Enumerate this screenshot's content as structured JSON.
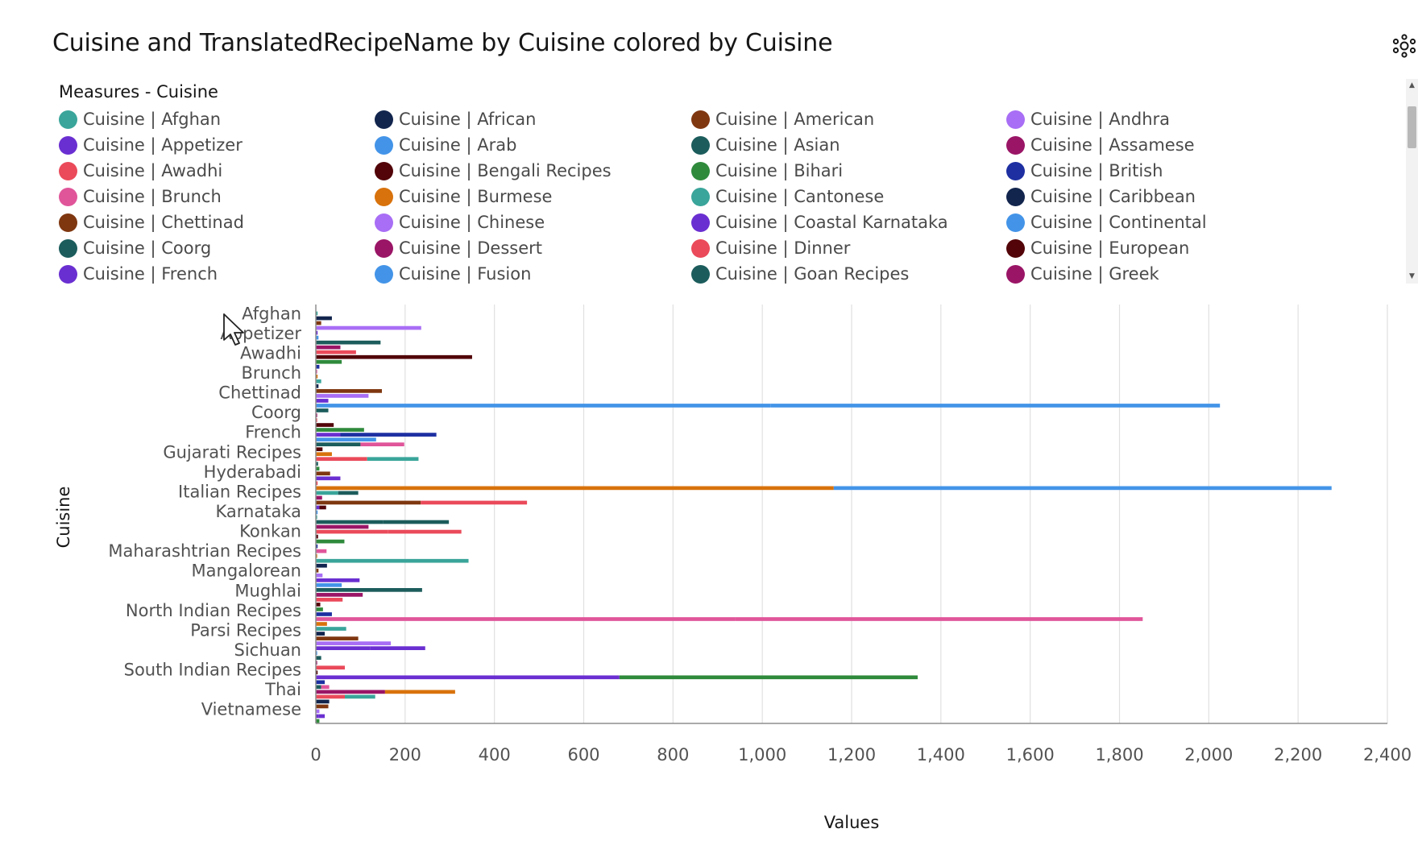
{
  "title": "Cuisine and TranslatedRecipeName by Cuisine colored by Cuisine",
  "legend": {
    "title": "Measures - Cuisine",
    "items": [
      {
        "label": "Cuisine | Afghan",
        "color": "#3aa59a"
      },
      {
        "label": "Cuisine | African",
        "color": "#12254d"
      },
      {
        "label": "Cuisine | American",
        "color": "#7f3710"
      },
      {
        "label": "Cuisine | Andhra",
        "color": "#a86ef5"
      },
      {
        "label": "Cuisine | Appetizer",
        "color": "#6a2fd1"
      },
      {
        "label": "Cuisine | Arab",
        "color": "#4394e8"
      },
      {
        "label": "Cuisine | Asian",
        "color": "#1c5c5c"
      },
      {
        "label": "Cuisine | Assamese",
        "color": "#9a1566"
      },
      {
        "label": "Cuisine | Awadhi",
        "color": "#ea4a5a"
      },
      {
        "label": "Cuisine | Bengali Recipes",
        "color": "#520408"
      },
      {
        "label": "Cuisine | Bihari",
        "color": "#2f8a3c"
      },
      {
        "label": "Cuisine | British",
        "color": "#1d2fa1"
      },
      {
        "label": "Cuisine | Brunch",
        "color": "#e0559a"
      },
      {
        "label": "Cuisine | Burmese",
        "color": "#d8720c"
      },
      {
        "label": "Cuisine | Cantonese",
        "color": "#3aa59a"
      },
      {
        "label": "Cuisine | Caribbean",
        "color": "#12254d"
      },
      {
        "label": "Cuisine | Chettinad",
        "color": "#7f3710"
      },
      {
        "label": "Cuisine | Chinese",
        "color": "#a86ef5"
      },
      {
        "label": "Cuisine | Coastal Karnataka",
        "color": "#6a2fd1"
      },
      {
        "label": "Cuisine | Continental",
        "color": "#4394e8"
      },
      {
        "label": "Cuisine | Coorg",
        "color": "#1c5c5c"
      },
      {
        "label": "Cuisine | Dessert",
        "color": "#9a1566"
      },
      {
        "label": "Cuisine | Dinner",
        "color": "#ea4a5a"
      },
      {
        "label": "Cuisine | European",
        "color": "#520408"
      },
      {
        "label": "Cuisine | French",
        "color": "#6a2fd1"
      },
      {
        "label": "Cuisine | Fusion",
        "color": "#4394e8"
      },
      {
        "label": "Cuisine | Goan Recipes",
        "color": "#1c5c5c"
      },
      {
        "label": "Cuisine | Greek",
        "color": "#9a1566"
      }
    ]
  },
  "chart_data": {
    "type": "bar",
    "orientation": "horizontal",
    "stacked": true,
    "xlabel": "Values",
    "ylabel": "Cuisine",
    "xlim": [
      0,
      2400
    ],
    "xticks": [
      0,
      200,
      400,
      600,
      800,
      1000,
      1200,
      1400,
      1600,
      1800,
      2000,
      2200,
      2400
    ],
    "xtick_labels": [
      "0",
      "200",
      "400",
      "600",
      "800",
      "1,000",
      "1,200",
      "1,400",
      "1,600",
      "1,800",
      "2,000",
      "2,200",
      "2,400"
    ],
    "grid": "vertical",
    "category_labels": [
      "Afghan",
      "Appetizer",
      "Awadhi",
      "Brunch",
      "Chettinad",
      "Coorg",
      "French",
      "Gujarati Recipes",
      "Hyderabadi",
      "Italian Recipes",
      "Karnataka",
      "Konkan",
      "Maharashtrian Recipes",
      "Mangalorean",
      "Mughlai",
      "North Indian Recipes",
      "Parsi Recipes",
      "Sichuan",
      "South Indian Recipes",
      "Thai",
      "Vietnamese"
    ],
    "bars": [
      {
        "segments": [
          {
            "value": 4,
            "color": "#3aa59a"
          }
        ]
      },
      {
        "segments": [
          {
            "value": 36,
            "color": "#12254d"
          }
        ]
      },
      {
        "segments": [
          {
            "value": 12,
            "color": "#7f3710"
          }
        ]
      },
      {
        "segments": [
          {
            "value": 120,
            "color": "#a86ef5"
          },
          {
            "value": 116,
            "color": "#a86ef5"
          }
        ]
      },
      {
        "segments": [
          {
            "value": 4,
            "color": "#6a2fd1"
          }
        ]
      },
      {
        "segments": [
          {
            "value": 6,
            "color": "#4394e8"
          }
        ]
      },
      {
        "segments": [
          {
            "value": 145,
            "color": "#1c5c5c"
          }
        ]
      },
      {
        "segments": [
          {
            "value": 55,
            "color": "#9a1566"
          }
        ]
      },
      {
        "segments": [
          {
            "value": 90,
            "color": "#ea4a5a"
          }
        ]
      },
      {
        "segments": [
          {
            "value": 350,
            "color": "#520408"
          }
        ]
      },
      {
        "segments": [
          {
            "value": 58,
            "color": "#2f8a3c"
          }
        ]
      },
      {
        "segments": [
          {
            "value": 8,
            "color": "#1d2fa1"
          }
        ]
      },
      {
        "segments": [
          {
            "value": 3,
            "color": "#e0559a"
          }
        ]
      },
      {
        "segments": [
          {
            "value": 4,
            "color": "#d8720c"
          }
        ]
      },
      {
        "segments": [
          {
            "value": 12,
            "color": "#3aa59a"
          }
        ]
      },
      {
        "segments": [
          {
            "value": 6,
            "color": "#12254d"
          }
        ]
      },
      {
        "segments": [
          {
            "value": 148,
            "color": "#7f3710"
          }
        ]
      },
      {
        "segments": [
          {
            "value": 118,
            "color": "#a86ef5"
          }
        ]
      },
      {
        "segments": [
          {
            "value": 28,
            "color": "#6a2fd1"
          }
        ]
      },
      {
        "segments": [
          {
            "value": 28,
            "color": "#4394e8"
          },
          {
            "value": 990,
            "color": "#4394e8"
          },
          {
            "value": 1007,
            "color": "#4394e8"
          }
        ]
      },
      {
        "segments": [
          {
            "value": 28,
            "color": "#1c5c5c"
          }
        ]
      },
      {
        "segments": [
          {
            "value": 3,
            "color": "#9a1566"
          }
        ]
      },
      {
        "segments": [
          {
            "value": 3,
            "color": "#ea4a5a"
          }
        ]
      },
      {
        "segments": [
          {
            "value": 40,
            "color": "#520408"
          }
        ]
      },
      {
        "segments": [
          {
            "value": 108,
            "color": "#2f8a3c"
          }
        ]
      },
      {
        "segments": [
          {
            "value": 55,
            "color": "#6a2fd1"
          },
          {
            "value": 215,
            "color": "#1d2fa1"
          }
        ]
      },
      {
        "segments": [
          {
            "value": 135,
            "color": "#4394e8"
          }
        ]
      },
      {
        "segments": [
          {
            "value": 100,
            "color": "#1c5c5c"
          },
          {
            "value": 98,
            "color": "#e0559a"
          }
        ]
      },
      {
        "segments": [
          {
            "value": 15,
            "color": "#520408"
          }
        ]
      },
      {
        "segments": [
          {
            "value": 36,
            "color": "#d8720c"
          }
        ]
      },
      {
        "segments": [
          {
            "value": 115,
            "color": "#ea4a5a"
          },
          {
            "value": 115,
            "color": "#3aa59a"
          }
        ]
      },
      {
        "segments": [
          {
            "value": 5,
            "color": "#1c5c5c"
          }
        ]
      },
      {
        "segments": [
          {
            "value": 8,
            "color": "#2f8a3c"
          }
        ]
      },
      {
        "segments": [
          {
            "value": 32,
            "color": "#7f3710"
          }
        ]
      },
      {
        "segments": [
          {
            "value": 55,
            "color": "#6a2fd1"
          }
        ]
      },
      {
        "segments": [
          {
            "value": 4,
            "color": "#ea4a5a"
          }
        ]
      },
      {
        "segments": [
          {
            "value": 1160,
            "color": "#d8720c"
          },
          {
            "value": 1115,
            "color": "#4394e8"
          }
        ]
      },
      {
        "segments": [
          {
            "value": 50,
            "color": "#3aa59a"
          },
          {
            "value": 45,
            "color": "#1c5c5c"
          }
        ]
      },
      {
        "segments": [
          {
            "value": 14,
            "color": "#9a1566"
          }
        ]
      },
      {
        "segments": [
          {
            "value": 235,
            "color": "#7f3710"
          },
          {
            "value": 238,
            "color": "#ea4a5a"
          }
        ]
      },
      {
        "segments": [
          {
            "value": 8,
            "color": "#6a2fd1"
          },
          {
            "value": 15,
            "color": "#520408"
          }
        ]
      },
      {
        "segments": [
          {
            "value": 4,
            "color": "#4394e8"
          }
        ]
      },
      {
        "segments": [
          {
            "value": 3,
            "color": "#3aa59a"
          }
        ]
      },
      {
        "segments": [
          {
            "value": 150,
            "color": "#1c5c5c"
          },
          {
            "value": 148,
            "color": "#1c5c5c"
          }
        ]
      },
      {
        "segments": [
          {
            "value": 118,
            "color": "#9a1566"
          }
        ]
      },
      {
        "segments": [
          {
            "value": 162,
            "color": "#ea4a5a"
          },
          {
            "value": 164,
            "color": "#ea4a5a"
          }
        ]
      },
      {
        "segments": [
          {
            "value": 5,
            "color": "#520408"
          }
        ]
      },
      {
        "segments": [
          {
            "value": 64,
            "color": "#2f8a3c"
          }
        ]
      },
      {
        "segments": [
          {
            "value": 4,
            "color": "#1d2fa1"
          }
        ]
      },
      {
        "segments": [
          {
            "value": 24,
            "color": "#e0559a"
          }
        ]
      },
      {
        "segments": [
          {
            "value": 3,
            "color": "#d8720c"
          }
        ]
      },
      {
        "segments": [
          {
            "value": 342,
            "color": "#3aa59a"
          }
        ]
      },
      {
        "segments": [
          {
            "value": 25,
            "color": "#12254d"
          }
        ]
      },
      {
        "segments": [
          {
            "value": 6,
            "color": "#7f3710"
          }
        ]
      },
      {
        "segments": [
          {
            "value": 15,
            "color": "#a86ef5"
          }
        ]
      },
      {
        "segments": [
          {
            "value": 98,
            "color": "#6a2fd1"
          }
        ]
      },
      {
        "segments": [
          {
            "value": 58,
            "color": "#4394e8"
          }
        ]
      },
      {
        "segments": [
          {
            "value": 120,
            "color": "#1c5c5c"
          },
          {
            "value": 118,
            "color": "#1c5c5c"
          }
        ]
      },
      {
        "segments": [
          {
            "value": 105,
            "color": "#9a1566"
          }
        ]
      },
      {
        "segments": [
          {
            "value": 60,
            "color": "#ea4a5a"
          }
        ]
      },
      {
        "segments": [
          {
            "value": 10,
            "color": "#520408"
          }
        ]
      },
      {
        "segments": [
          {
            "value": 16,
            "color": "#2f8a3c"
          }
        ]
      },
      {
        "segments": [
          {
            "value": 36,
            "color": "#1d2fa1"
          }
        ]
      },
      {
        "segments": [
          {
            "value": 940,
            "color": "#e0559a"
          },
          {
            "value": 912,
            "color": "#e0559a"
          }
        ]
      },
      {
        "segments": [
          {
            "value": 25,
            "color": "#d8720c"
          }
        ]
      },
      {
        "segments": [
          {
            "value": 68,
            "color": "#3aa59a"
          }
        ]
      },
      {
        "segments": [
          {
            "value": 20,
            "color": "#12254d"
          }
        ]
      },
      {
        "segments": [
          {
            "value": 95,
            "color": "#7f3710"
          }
        ]
      },
      {
        "segments": [
          {
            "value": 168,
            "color": "#a86ef5"
          }
        ]
      },
      {
        "segments": [
          {
            "value": 122,
            "color": "#6a2fd1"
          },
          {
            "value": 123,
            "color": "#6a2fd1"
          }
        ]
      },
      {
        "segments": [
          {
            "value": 3,
            "color": "#4394e8"
          }
        ]
      },
      {
        "segments": [
          {
            "value": 12,
            "color": "#1c5c5c"
          }
        ]
      },
      {
        "segments": [
          {
            "value": 3,
            "color": "#9a1566"
          }
        ]
      },
      {
        "segments": [
          {
            "value": 65,
            "color": "#ea4a5a"
          }
        ]
      },
      {
        "segments": [
          {
            "value": 4,
            "color": "#520408"
          }
        ]
      },
      {
        "segments": [
          {
            "value": 680,
            "color": "#6a2fd1"
          },
          {
            "value": 668,
            "color": "#2f8a3c"
          }
        ]
      },
      {
        "segments": [
          {
            "value": 20,
            "color": "#1d2fa1"
          }
        ]
      },
      {
        "segments": [
          {
            "value": 12,
            "color": "#1c5c5c"
          },
          {
            "value": 18,
            "color": "#e0559a"
          }
        ]
      },
      {
        "segments": [
          {
            "value": 155,
            "color": "#9a1566"
          },
          {
            "value": 157,
            "color": "#d8720c"
          }
        ]
      },
      {
        "segments": [
          {
            "value": 65,
            "color": "#ea4a5a"
          },
          {
            "value": 68,
            "color": "#3aa59a"
          }
        ]
      },
      {
        "segments": [
          {
            "value": 30,
            "color": "#12254d"
          }
        ]
      },
      {
        "segments": [
          {
            "value": 28,
            "color": "#7f3710"
          }
        ]
      },
      {
        "segments": [
          {
            "value": 8,
            "color": "#a86ef5"
          }
        ]
      },
      {
        "segments": [
          {
            "value": 6,
            "color": "#6a2fd1"
          },
          {
            "value": 14,
            "color": "#6a2fd1"
          }
        ]
      },
      {
        "segments": [
          {
            "value": 8,
            "color": "#2f8a3c"
          }
        ]
      }
    ]
  }
}
